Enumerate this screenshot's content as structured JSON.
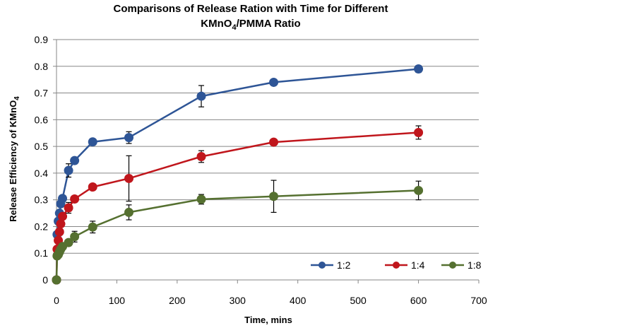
{
  "chart_data": {
    "type": "line",
    "title_line1": "Comparisons of Release Ration with Time for Different",
    "title_line2_main": "KMnO",
    "title_line2_sub": "4",
    "title_line2_rest": "/PMMA Ratio",
    "xlabel": "Time, mins",
    "ylabel_main": "Release Efficiency of KMnO",
    "ylabel_sub": "4",
    "xlim": [
      0,
      700
    ],
    "ylim": [
      0,
      0.9
    ],
    "xticks": [
      0,
      100,
      200,
      300,
      400,
      500,
      600,
      700
    ],
    "yticks": [
      0,
      0.1,
      0.2,
      0.3,
      0.4,
      0.5,
      0.6,
      0.7,
      0.8,
      0.9
    ],
    "grid": "horizontal",
    "legend_position": "bottom-right",
    "series": [
      {
        "name": "1:2",
        "color": "#2E5596",
        "points": [
          {
            "x": 0,
            "y": 0.0
          },
          {
            "x": 1,
            "y": 0.17
          },
          {
            "x": 3,
            "y": 0.22
          },
          {
            "x": 5,
            "y": 0.25
          },
          {
            "x": 7,
            "y": 0.285
          },
          {
            "x": 10,
            "y": 0.305
          },
          {
            "x": 20,
            "y": 0.41,
            "err": 0.025
          },
          {
            "x": 30,
            "y": 0.447
          },
          {
            "x": 60,
            "y": 0.517
          },
          {
            "x": 120,
            "y": 0.533,
            "err": 0.022
          },
          {
            "x": 240,
            "y": 0.688,
            "err": 0.04
          },
          {
            "x": 360,
            "y": 0.74
          },
          {
            "x": 600,
            "y": 0.79,
            "err": 0.013
          }
        ]
      },
      {
        "name": "1:4",
        "color": "#C0161C",
        "points": [
          {
            "x": 0,
            "y": 0.0
          },
          {
            "x": 1,
            "y": 0.115
          },
          {
            "x": 3,
            "y": 0.148
          },
          {
            "x": 5,
            "y": 0.18
          },
          {
            "x": 7,
            "y": 0.21
          },
          {
            "x": 10,
            "y": 0.238
          },
          {
            "x": 20,
            "y": 0.27,
            "err": 0.02
          },
          {
            "x": 30,
            "y": 0.303
          },
          {
            "x": 60,
            "y": 0.348
          },
          {
            "x": 120,
            "y": 0.38,
            "err": 0.085
          },
          {
            "x": 240,
            "y": 0.462,
            "err": 0.022
          },
          {
            "x": 360,
            "y": 0.516
          },
          {
            "x": 600,
            "y": 0.552,
            "err": 0.025
          }
        ]
      },
      {
        "name": "1:8",
        "color": "#557030",
        "points": [
          {
            "x": 0,
            "y": 0.0
          },
          {
            "x": 1,
            "y": 0.09
          },
          {
            "x": 3,
            "y": 0.095
          },
          {
            "x": 5,
            "y": 0.105
          },
          {
            "x": 7,
            "y": 0.115
          },
          {
            "x": 10,
            "y": 0.125
          },
          {
            "x": 20,
            "y": 0.14
          },
          {
            "x": 30,
            "y": 0.162,
            "err": 0.02
          },
          {
            "x": 60,
            "y": 0.198,
            "err": 0.022
          },
          {
            "x": 120,
            "y": 0.253,
            "err": 0.028
          },
          {
            "x": 240,
            "y": 0.302,
            "err": 0.018
          },
          {
            "x": 360,
            "y": 0.313,
            "err": 0.06
          },
          {
            "x": 600,
            "y": 0.335,
            "err": 0.035
          }
        ]
      }
    ]
  }
}
